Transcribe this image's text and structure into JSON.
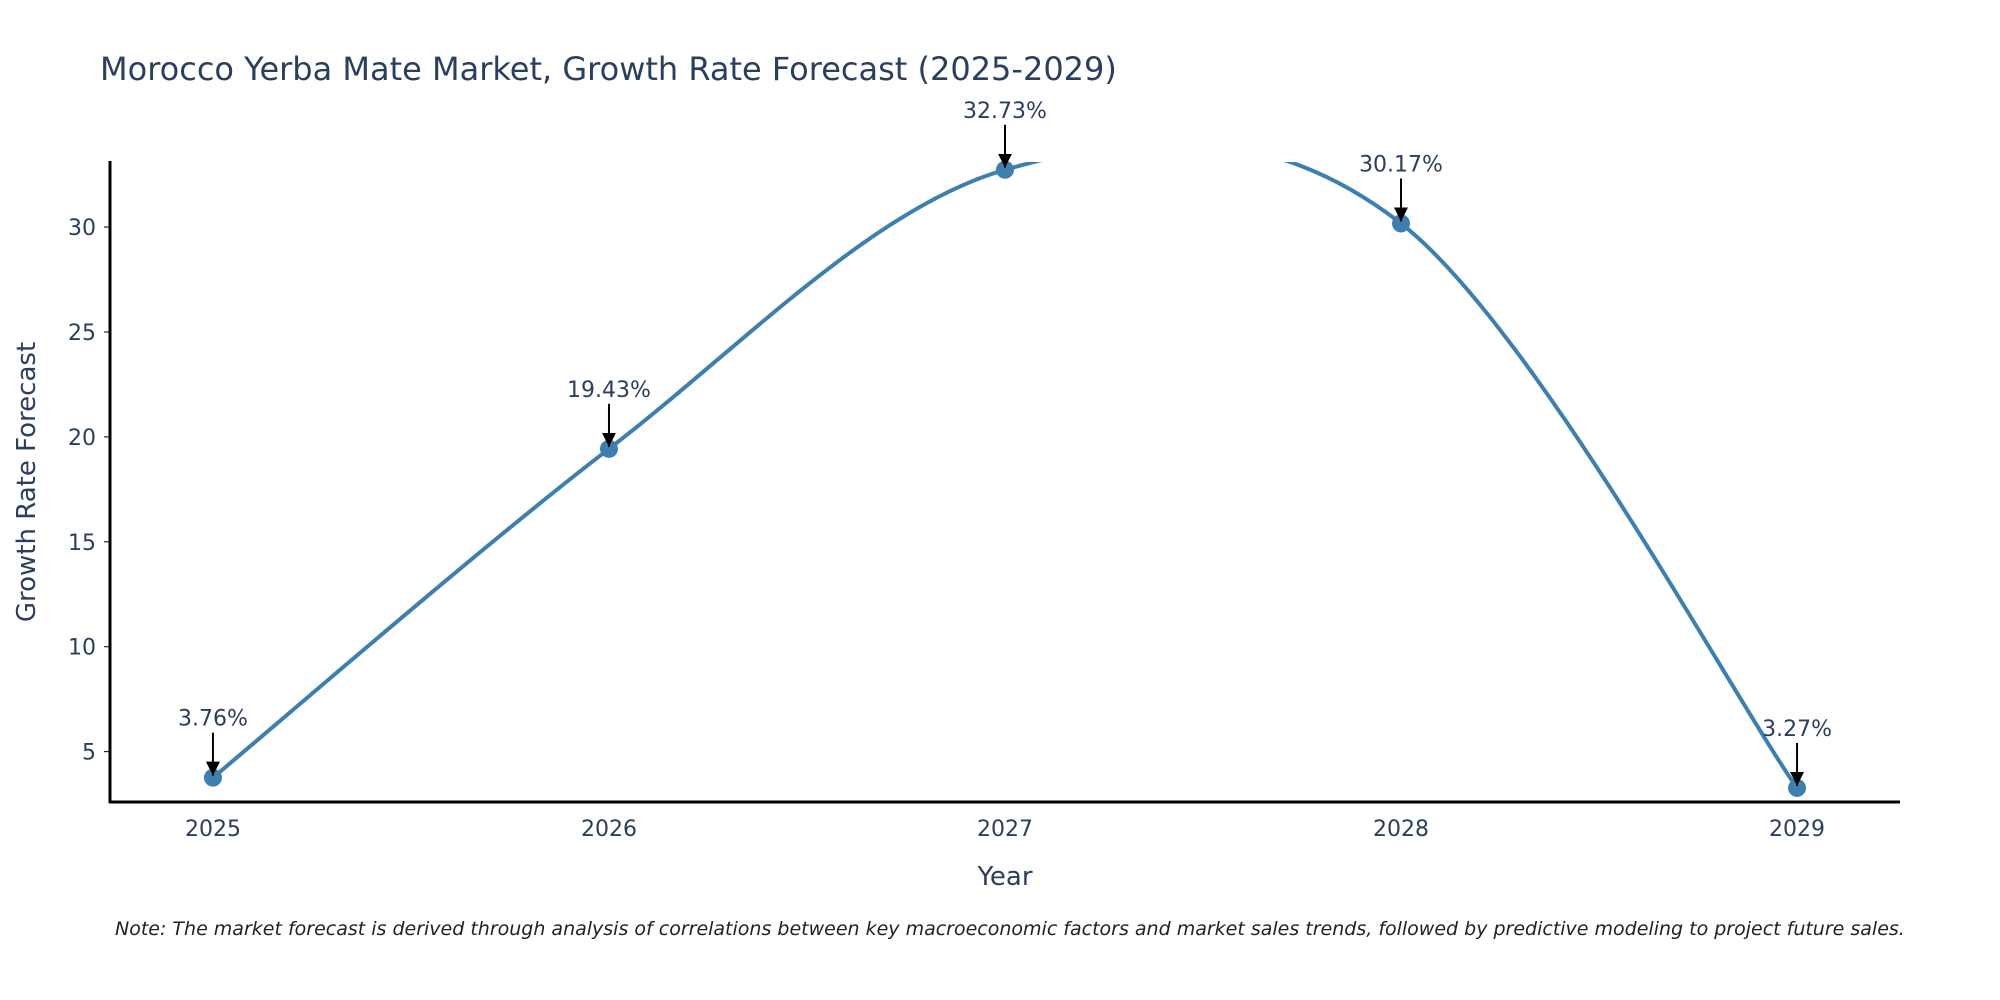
{
  "chart_data": {
    "type": "line",
    "title": "Morocco Yerba Mate Market, Growth Rate Forecast (2025-2029)",
    "xlabel": "Year",
    "ylabel": "Growth Rate Forecast",
    "categories": [
      "2025",
      "2026",
      "2027",
      "2028",
      "2029"
    ],
    "values": [
      3.76,
      19.43,
      32.73,
      30.17,
      3.27
    ],
    "data_labels": [
      "3.76%",
      "19.43%",
      "32.73%",
      "30.17%",
      "3.27%"
    ],
    "y_ticks": [
      5,
      10,
      15,
      20,
      25,
      30
    ],
    "ylim": [
      2.6,
      33.1
    ],
    "xlim": [
      -0.26,
      4.26
    ],
    "line_shape": "spline",
    "grid": false,
    "colors": {
      "line": "#3d7fae",
      "marker": "#3d7fae",
      "arrow": "#000000",
      "axis": "#000000"
    }
  },
  "note": "Note: The market forecast is derived through analysis of correlations between key macroeconomic factors and market sales trends, followed by predictive modeling to project future sales."
}
